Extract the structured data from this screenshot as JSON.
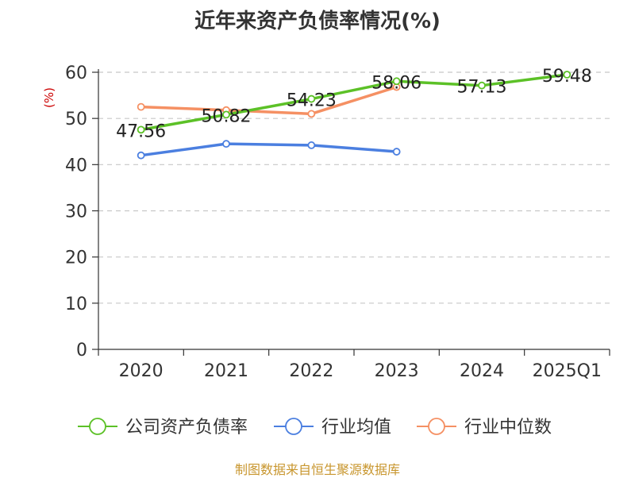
{
  "chart_data": {
    "type": "line",
    "title": "近年来资产负债率情况(%)",
    "ylabel": "(%)",
    "xlabel": "",
    "categories": [
      "2020",
      "2021",
      "2022",
      "2023",
      "2024",
      "2025Q1"
    ],
    "ylim": [
      0,
      60
    ],
    "yticks": [
      0,
      10,
      20,
      30,
      40,
      50,
      60
    ],
    "grid": true,
    "legend_position": "bottom",
    "series": [
      {
        "name": "公司资产负债率",
        "color": "#5cc127",
        "values": [
          47.56,
          50.82,
          54.23,
          58.06,
          57.13,
          59.48
        ],
        "labels": [
          "47.56",
          "50.82",
          "54.23",
          "58.06",
          "57.13",
          "59.48"
        ]
      },
      {
        "name": "行业均值",
        "color": "#4b7fe0",
        "values": [
          42.0,
          44.5,
          44.2,
          42.8,
          null,
          null
        ]
      },
      {
        "name": "行业中位数",
        "color": "#f59063",
        "values": [
          52.5,
          51.8,
          51.0,
          56.8,
          null,
          null
        ]
      }
    ]
  },
  "source": "制图数据来自恒生聚源数据库"
}
